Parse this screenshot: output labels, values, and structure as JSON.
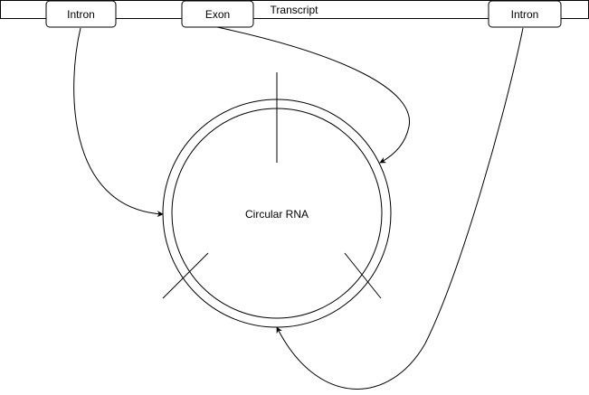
{
  "diagram": {
    "transcript_label": "Transcript",
    "left_intron_label": "Intron",
    "exon_label": "Exon",
    "right_intron_label": "Intron",
    "circle_label": "Circular RNA"
  },
  "colors": {
    "stroke": "#000000",
    "fill": "#ffffff",
    "text": "#000000"
  }
}
